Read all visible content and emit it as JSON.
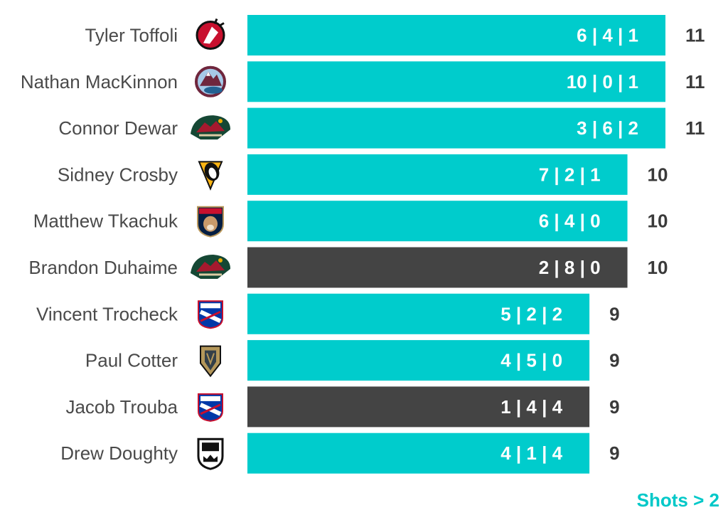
{
  "chart_data": {
    "type": "bar",
    "orientation": "horizontal",
    "categories": [
      "Tyler Toffoli",
      "Nathan MacKinnon",
      "Connor Dewar",
      "Sidney Crosby",
      "Matthew Tkachuk",
      "Brandon Duhaime",
      "Vincent Trocheck",
      "Paul Cotter",
      "Jacob Trouba",
      "Drew Doughty"
    ],
    "values": [
      11,
      11,
      11,
      10,
      10,
      10,
      9,
      9,
      9,
      9
    ],
    "breakdown": [
      [
        6,
        4,
        1
      ],
      [
        10,
        0,
        1
      ],
      [
        3,
        6,
        2
      ],
      [
        7,
        2,
        1
      ],
      [
        6,
        4,
        0
      ],
      [
        2,
        8,
        0
      ],
      [
        5,
        2,
        2
      ],
      [
        4,
        5,
        0
      ],
      [
        1,
        4,
        4
      ],
      [
        4,
        1,
        4
      ]
    ],
    "team_icons": [
      "devils-logo-icon",
      "avalanche-logo-icon",
      "wild-logo-icon",
      "penguins-logo-icon",
      "panthers-logo-icon",
      "wild-logo-icon",
      "rangers-logo-icon",
      "golden-knights-logo-icon",
      "rangers-logo-icon",
      "kings-logo-icon"
    ],
    "highlighted": [
      false,
      false,
      false,
      false,
      false,
      true,
      false,
      false,
      true,
      false
    ],
    "xlim": [
      0,
      11
    ],
    "grid": false,
    "legend": "none"
  },
  "footnote": "Shots > 2",
  "colors": {
    "bar": "#00cccc",
    "bar_highlight": "#444444",
    "footnote": "#00c8c8",
    "name_text": "#4a4a4a",
    "total_text": "#3a3a3a"
  }
}
